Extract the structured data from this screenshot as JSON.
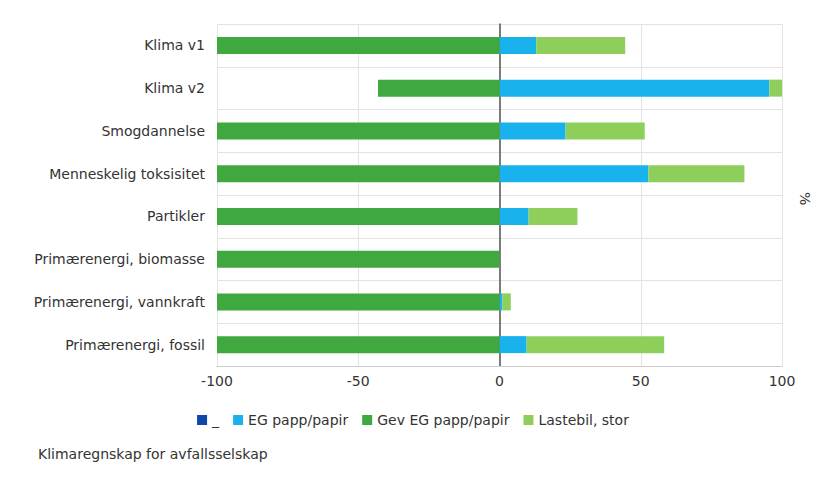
{
  "chart_data": {
    "type": "bar",
    "title": "Klimaregnskap for avfallsselskap",
    "xlabel": "%",
    "orientation": "horizontal",
    "stacked": true,
    "grid": true,
    "legend": "bottom",
    "categories": [
      "Klima v1",
      "Klima v2",
      "Smogdannelse",
      "Menneskelig toksisitet",
      "Partikler",
      "Primærenergi, biomasse",
      "Primærenergi, vannkraft",
      "Primærenergi, fossil"
    ],
    "series": [
      {
        "name": "_",
        "color": "#0d47a8",
        "values": [
          0,
          0,
          0,
          0,
          0,
          0,
          0,
          0
        ]
      },
      {
        "name": "EG papp/papir",
        "color": "#1ab2ec",
        "values": [
          13,
          95.5,
          23.4,
          52.7,
          10.3,
          0,
          1,
          9.6
        ]
      },
      {
        "name": "Gev EG papp/papir",
        "color": "#3fa93f",
        "values": [
          -100,
          -43,
          -100,
          -100,
          -100,
          -100,
          -100,
          -100
        ]
      },
      {
        "name": "Lastebil, stor",
        "color": "#8ecf5c",
        "values": [
          31.5,
          4.5,
          28,
          34,
          17.3,
          0,
          3,
          48.7
        ]
      }
    ],
    "xlim": [
      -100,
      100
    ],
    "xticks": [
      -100,
      -50,
      0,
      50,
      100
    ]
  }
}
